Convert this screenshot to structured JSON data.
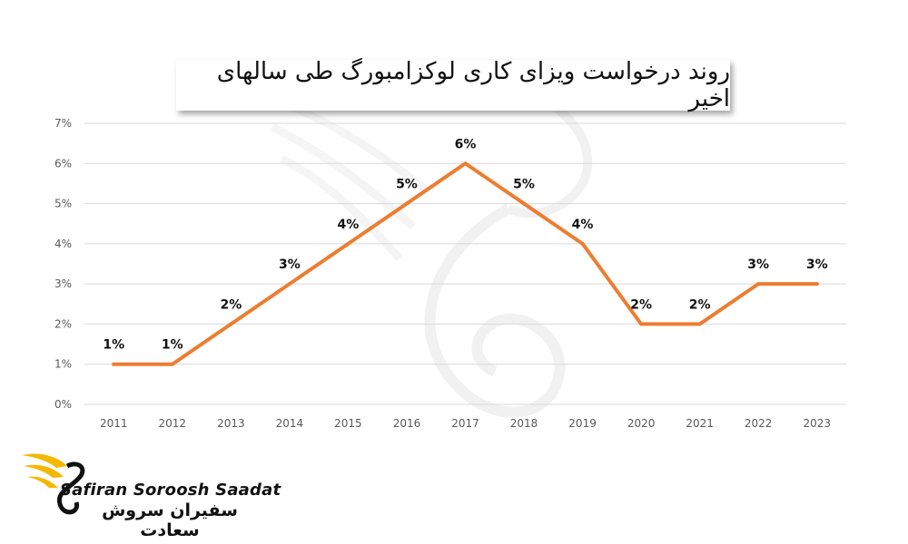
{
  "chart_data": {
    "type": "line",
    "title": "روند درخواست ویزای کاری لوکزامبورگ طی سالهای اخیر",
    "categories": [
      "2011",
      "2012",
      "2013",
      "2014",
      "2015",
      "2016",
      "2017",
      "2018",
      "2019",
      "2020",
      "2021",
      "2022",
      "2023"
    ],
    "series": [
      {
        "values": [
          1,
          1,
          2,
          3,
          4,
          5,
          6,
          5,
          4,
          2,
          2,
          3,
          3
        ],
        "color": "#ED7D31"
      }
    ],
    "data_labels": [
      "1%",
      "1%",
      "2%",
      "3%",
      "4%",
      "5%",
      "6%",
      "5%",
      "4%",
      "2%",
      "2%",
      "3%",
      "3%"
    ],
    "y_ticks": [
      "0%",
      "1%",
      "2%",
      "3%",
      "4%",
      "5%",
      "6%",
      "7%"
    ],
    "ylim": [
      0,
      7
    ],
    "grid": true,
    "legend": "none"
  },
  "logo": {
    "en": "Safiran Soroosh Saadat",
    "fa": "سفیران سروش سعادت",
    "icon": "swan-wing-logo"
  }
}
